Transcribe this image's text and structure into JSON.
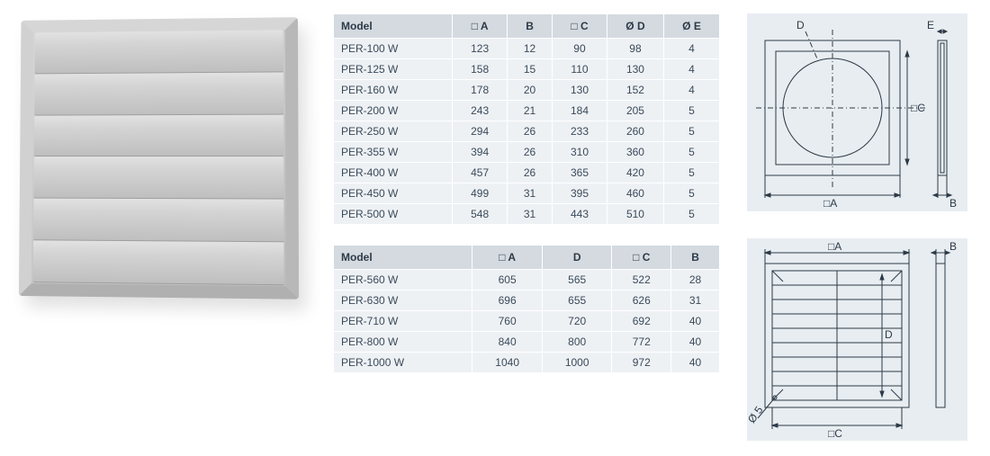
{
  "colors": {
    "header_bg": "#d4dae0",
    "row_bg": "#eef1f4",
    "text": "#3a4a5a",
    "diagram_bg": "#e8edf1",
    "line": "#2d3a48"
  },
  "table1": {
    "headers": [
      "Model",
      "□ A",
      "B",
      "□ C",
      "Ø D",
      "Ø E"
    ],
    "rows": [
      [
        "PER-100 W",
        "123",
        "12",
        "90",
        "98",
        "4"
      ],
      [
        "PER-125 W",
        "158",
        "15",
        "110",
        "130",
        "4"
      ],
      [
        "PER-160 W",
        "178",
        "20",
        "130",
        "152",
        "4"
      ],
      [
        "PER-200 W",
        "243",
        "21",
        "184",
        "205",
        "5"
      ],
      [
        "PER-250 W",
        "294",
        "26",
        "233",
        "260",
        "5"
      ],
      [
        "PER-355 W",
        "394",
        "26",
        "310",
        "360",
        "5"
      ],
      [
        "PER-400 W",
        "457",
        "26",
        "365",
        "420",
        "5"
      ],
      [
        "PER-450 W",
        "499",
        "31",
        "395",
        "460",
        "5"
      ],
      [
        "PER-500 W",
        "548",
        "31",
        "443",
        "510",
        "5"
      ]
    ]
  },
  "table2": {
    "headers": [
      "Model",
      "□ A",
      "D",
      "□ C",
      "B"
    ],
    "rows": [
      [
        "PER-560 W",
        "605",
        "565",
        "522",
        "28"
      ],
      [
        "PER-630 W",
        "696",
        "655",
        "626",
        "31"
      ],
      [
        "PER-710 W",
        "760",
        "720",
        "692",
        "40"
      ],
      [
        "PER-800 W",
        "840",
        "800",
        "772",
        "40"
      ],
      [
        "PER-1000 W",
        "1040",
        "1000",
        "972",
        "40"
      ]
    ]
  },
  "diagram1_labels": {
    "D": "D",
    "E": "E",
    "C": "□C",
    "A": "□A",
    "B": "B"
  },
  "diagram2_labels": {
    "A": "□A",
    "B": "B",
    "D": "D",
    "C": "□C",
    "hole": "Ø 5"
  }
}
